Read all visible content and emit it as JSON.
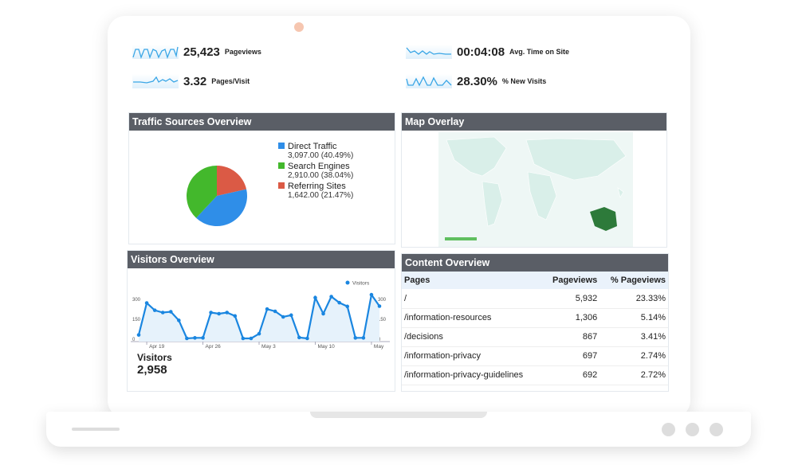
{
  "metrics": [
    {
      "value": "25,423",
      "label": "Pageviews"
    },
    {
      "value": "3.32",
      "label": "Pages/Visit"
    },
    {
      "value": "00:04:08",
      "label": "Avg. Time on Site"
    },
    {
      "value": "28.30%",
      "label": "% New Visits"
    }
  ],
  "traffic": {
    "title": "Traffic Sources Overview",
    "items": [
      {
        "name": "Direct Traffic",
        "detail": "3,097.00 (40.49%)",
        "pct": 40.49,
        "color": "#2f8ee8"
      },
      {
        "name": "Search Engines",
        "detail": "2,910.00 (38.04%)",
        "pct": 38.04,
        "color": "#43b82c"
      },
      {
        "name": "Referring Sites",
        "detail": "1,642.00 (21.47%)",
        "pct": 21.47,
        "color": "#db5a45"
      }
    ]
  },
  "map": {
    "title": "Map Overlay",
    "highlight_color": "#2d7a3a"
  },
  "visitors": {
    "title": "Visitors Overview",
    "total_label": "Visitors",
    "total": "2,958"
  },
  "chart_data": {
    "type": "line",
    "legend": "Visitors",
    "legend_position": "top-right",
    "color": "#1a86e0",
    "x_ticks": [
      "Apr 19",
      "Apr 26",
      "May 3",
      "May 10",
      "May"
    ],
    "y_ticks": [
      0,
      150,
      300
    ],
    "ylim": [
      0,
      330
    ],
    "values": [
      26,
      267,
      212,
      195,
      201,
      136,
      0,
      4,
      4,
      195,
      186,
      195,
      169,
      0,
      0,
      35,
      221,
      204,
      162,
      175,
      7,
      0,
      307,
      186,
      315,
      269,
      241,
      4,
      4,
      329,
      243
    ]
  },
  "content": {
    "title": "Content Overview",
    "headers": [
      "Pages",
      "Pageviews",
      "% Pageviews"
    ],
    "rows": [
      [
        "/",
        "5,932",
        "23.33%"
      ],
      [
        "/information-resources",
        "1,306",
        "5.14%"
      ],
      [
        "/decisions",
        "867",
        "3.41%"
      ],
      [
        "/information-privacy",
        "697",
        "2.74%"
      ],
      [
        "/information-privacy-guidelines",
        "692",
        "2.72%"
      ]
    ]
  }
}
